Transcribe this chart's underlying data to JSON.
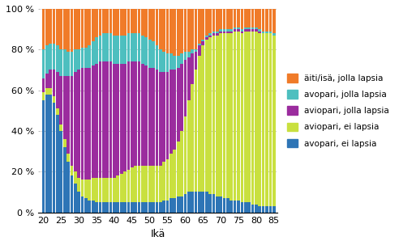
{
  "ages": [
    20,
    21,
    22,
    23,
    24,
    25,
    26,
    27,
    28,
    29,
    30,
    31,
    32,
    33,
    34,
    35,
    36,
    37,
    38,
    39,
    40,
    41,
    42,
    43,
    44,
    45,
    46,
    47,
    48,
    49,
    50,
    51,
    52,
    53,
    54,
    55,
    56,
    57,
    58,
    59,
    60,
    61,
    62,
    63,
    64,
    65,
    66,
    67,
    68,
    69,
    70,
    71,
    72,
    73,
    74,
    75,
    76,
    77,
    78,
    79,
    80,
    81,
    82,
    83,
    84,
    85
  ],
  "avopari_ei": [
    55,
    58,
    58,
    54,
    48,
    40,
    32,
    25,
    18,
    14,
    10,
    8,
    7,
    6,
    6,
    5,
    5,
    5,
    5,
    5,
    5,
    5,
    5,
    5,
    5,
    5,
    5,
    5,
    5,
    5,
    5,
    5,
    5,
    5,
    6,
    6,
    7,
    7,
    8,
    8,
    9,
    10,
    10,
    10,
    10,
    10,
    10,
    9,
    9,
    8,
    8,
    7,
    7,
    6,
    6,
    6,
    5,
    5,
    5,
    4,
    4,
    3,
    3,
    3,
    3,
    3
  ],
  "aviopari_ei": [
    4,
    3,
    3,
    3,
    3,
    3,
    4,
    4,
    5,
    6,
    7,
    8,
    9,
    10,
    11,
    12,
    12,
    12,
    12,
    12,
    12,
    13,
    14,
    15,
    16,
    17,
    18,
    18,
    18,
    18,
    18,
    18,
    18,
    18,
    19,
    20,
    22,
    24,
    27,
    32,
    38,
    45,
    53,
    60,
    67,
    72,
    75,
    77,
    78,
    79,
    80,
    81,
    81,
    82,
    83,
    83,
    83,
    84,
    84,
    85,
    85,
    85,
    85,
    85,
    85,
    84
  ],
  "aviopari_jolla": [
    7,
    7,
    9,
    13,
    18,
    24,
    31,
    38,
    44,
    49,
    53,
    55,
    55,
    55,
    55,
    56,
    57,
    57,
    57,
    57,
    56,
    55,
    54,
    53,
    53,
    52,
    51,
    51,
    50,
    49,
    48,
    48,
    47,
    46,
    44,
    43,
    41,
    39,
    36,
    33,
    28,
    21,
    15,
    9,
    5,
    2,
    1,
    1,
    1,
    1,
    1,
    1,
    1,
    1,
    1,
    1,
    1,
    1,
    1,
    1,
    1,
    1,
    0,
    0,
    0,
    0
  ],
  "avopari_jolla": [
    14,
    14,
    13,
    13,
    13,
    13,
    13,
    12,
    12,
    11,
    10,
    10,
    10,
    11,
    12,
    13,
    13,
    14,
    14,
    14,
    14,
    14,
    14,
    14,
    14,
    14,
    14,
    14,
    14,
    14,
    14,
    13,
    12,
    11,
    10,
    9,
    8,
    7,
    6,
    5,
    4,
    3,
    2,
    1,
    1,
    1,
    1,
    1,
    1,
    1,
    1,
    1,
    1,
    1,
    1,
    1,
    1,
    1,
    1,
    1,
    1,
    1,
    1,
    1,
    1,
    1
  ],
  "aiti_isa_jolla": [
    20,
    18,
    17,
    17,
    18,
    20,
    20,
    21,
    21,
    20,
    20,
    19,
    19,
    18,
    16,
    14,
    13,
    12,
    12,
    12,
    13,
    13,
    13,
    13,
    12,
    12,
    12,
    12,
    13,
    14,
    15,
    16,
    18,
    20,
    21,
    22,
    22,
    23,
    23,
    22,
    21,
    21,
    20,
    20,
    17,
    15,
    13,
    12,
    11,
    11,
    10,
    10,
    10,
    10,
    9,
    9,
    10,
    9,
    9,
    9,
    9,
    10,
    11,
    11,
    11,
    12
  ],
  "colors": {
    "avopari_ei": "#2E75B6",
    "aviopari_ei": "#C9E03F",
    "aviopari_jolla": "#9B2C9E",
    "avopari_jolla": "#4DBFBF",
    "aiti_isa_jolla": "#F07B29"
  },
  "legend_labels": [
    "äiti/isä, jolla lapsia",
    "avopari, jolla lapsia",
    "aviopari, jolla lapsia",
    "aviopari, ei lapsia",
    "avopari, ei lapsia"
  ],
  "xlabel": "Ikä",
  "yticks": [
    0,
    20,
    40,
    60,
    80,
    100
  ],
  "ytick_labels": [
    "0 %",
    "20 %",
    "40 %",
    "60 %",
    "80 %",
    "100 %"
  ],
  "xticks": [
    20,
    25,
    30,
    35,
    40,
    45,
    50,
    55,
    60,
    65,
    70,
    75,
    80,
    85
  ]
}
